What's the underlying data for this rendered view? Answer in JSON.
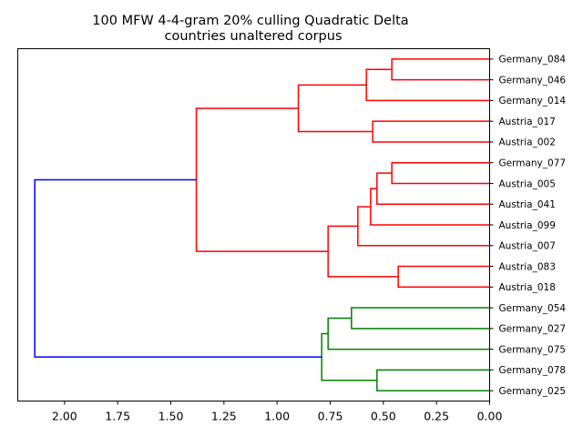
{
  "chart_data": {
    "type": "dendrogram",
    "title_lines": [
      "100 MFW 4-4-gram 20% culling Quadratic Delta",
      "countries unaltered corpus"
    ],
    "orientation": "left",
    "xlim": [
      2.22,
      0.0
    ],
    "xticks": [
      2.0,
      1.75,
      1.5,
      1.25,
      1.0,
      0.75,
      0.5,
      0.25,
      0.0
    ],
    "xtick_labels": [
      "2.00",
      "1.75",
      "1.50",
      "1.25",
      "1.00",
      "0.75",
      "0.50",
      "0.25",
      "0.00"
    ],
    "leaves": [
      "Germany_084",
      "Germany_046",
      "Germany_014",
      "Austria_017",
      "Austria_002",
      "Germany_077",
      "Austria_005",
      "Austria_041",
      "Austria_099",
      "Austria_007",
      "Austria_083",
      "Austria_018",
      "Germany_054",
      "Germany_027",
      "Germany_075",
      "Germany_078",
      "Germany_025"
    ],
    "colors": {
      "red": "#ff0000",
      "green": "#008000",
      "blue": "#0000ff"
    },
    "merges": [
      {
        "id": "n1",
        "a": "Germany_084",
        "b": "Germany_046",
        "height": 0.46,
        "color": "red"
      },
      {
        "id": "n2",
        "a": "n1",
        "b": "Germany_014",
        "height": 0.58,
        "color": "red"
      },
      {
        "id": "n3",
        "a": "Austria_017",
        "b": "Austria_002",
        "height": 0.55,
        "color": "red"
      },
      {
        "id": "n4",
        "a": "n2",
        "b": "n3",
        "height": 0.9,
        "color": "red"
      },
      {
        "id": "n5",
        "a": "Germany_077",
        "b": "Austria_005",
        "height": 0.46,
        "color": "red"
      },
      {
        "id": "n6",
        "a": "n5",
        "b": "Austria_041",
        "height": 0.53,
        "color": "red"
      },
      {
        "id": "n7",
        "a": "n6",
        "b": "Austria_099",
        "height": 0.56,
        "color": "red"
      },
      {
        "id": "n8",
        "a": "n7",
        "b": "Austria_007",
        "height": 0.62,
        "color": "red"
      },
      {
        "id": "n9",
        "a": "Austria_083",
        "b": "Austria_018",
        "height": 0.43,
        "color": "red"
      },
      {
        "id": "n10",
        "a": "n8",
        "b": "n9",
        "height": 0.76,
        "color": "red"
      },
      {
        "id": "n11",
        "a": "n4",
        "b": "n10",
        "height": 1.38,
        "color": "red"
      },
      {
        "id": "n12",
        "a": "Germany_054",
        "b": "Germany_027",
        "height": 0.65,
        "color": "green"
      },
      {
        "id": "n13",
        "a": "n12",
        "b": "Germany_075",
        "height": 0.76,
        "color": "green"
      },
      {
        "id": "n14",
        "a": "Germany_078",
        "b": "Germany_025",
        "height": 0.53,
        "color": "green"
      },
      {
        "id": "n15",
        "a": "n13",
        "b": "n14",
        "height": 0.79,
        "color": "green"
      },
      {
        "id": "n16",
        "a": "n11",
        "b": "n15",
        "height": 2.14,
        "color": "blue"
      }
    ]
  }
}
